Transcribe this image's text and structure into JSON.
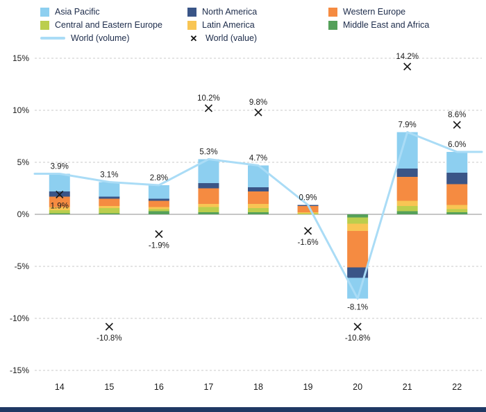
{
  "legend": {
    "items": [
      {
        "label": "Asia Pacific",
        "color": "#8DCFF0",
        "type": "square"
      },
      {
        "label": "North America",
        "color": "#3A5587",
        "type": "square"
      },
      {
        "label": "Western Europe",
        "color": "#F58B41",
        "type": "square"
      },
      {
        "label": "Central and Eastern Europe",
        "color": "#BBCE4D",
        "type": "square"
      },
      {
        "label": "Latin America",
        "color": "#F8C554",
        "type": "square"
      },
      {
        "label": "Middle East and Africa",
        "color": "#55A05A",
        "type": "square"
      },
      {
        "label": "World (volume)",
        "color": "#AADCF6",
        "type": "line"
      },
      {
        "label": "World (value)",
        "color": "#1a1a1a",
        "type": "x",
        "symbol": "✕"
      }
    ]
  },
  "chart_data": {
    "type": "bar",
    "subtype": "stacked-bars-with-line-and-markers",
    "categories": [
      "14",
      "15",
      "16",
      "17",
      "18",
      "19",
      "20",
      "21",
      "22"
    ],
    "series": [
      {
        "name": "Middle East and Africa",
        "color": "#55A05A",
        "values": [
          0.1,
          0.1,
          0.3,
          0.2,
          0.2,
          0.0,
          -0.3,
          0.3,
          0.2
        ]
      },
      {
        "name": "Central and Eastern Europe",
        "color": "#BBCE4D",
        "values": [
          0.3,
          0.5,
          0.2,
          0.5,
          0.4,
          0.1,
          -0.6,
          0.5,
          0.3
        ]
      },
      {
        "name": "Latin America",
        "color": "#F8C554",
        "values": [
          0.3,
          0.2,
          0.2,
          0.3,
          0.4,
          0.1,
          -0.7,
          0.5,
          0.4
        ]
      },
      {
        "name": "Western Europe",
        "color": "#F58B41",
        "values": [
          1.0,
          0.7,
          0.6,
          1.5,
          1.2,
          0.6,
          -3.5,
          2.3,
          2.0
        ]
      },
      {
        "name": "North America",
        "color": "#3A5587",
        "values": [
          0.5,
          0.2,
          0.2,
          0.5,
          0.4,
          0.1,
          -1.0,
          0.8,
          1.1
        ]
      },
      {
        "name": "Asia Pacific",
        "color": "#8DCFF0",
        "values": [
          1.7,
          1.4,
          1.3,
          2.3,
          2.1,
          0.0,
          -2.0,
          3.5,
          2.0
        ]
      }
    ],
    "line_series": {
      "name": "World (volume)",
      "color": "#AADCF6",
      "values": [
        3.9,
        3.1,
        2.8,
        5.3,
        4.7,
        0.9,
        -8.1,
        7.9,
        6.0
      ]
    },
    "marker_series": {
      "name": "World (value)",
      "color": "#1a1a1a",
      "values": [
        1.9,
        -10.8,
        -1.9,
        10.2,
        9.8,
        -1.6,
        -10.8,
        14.2,
        8.6
      ]
    },
    "bar_labels": [
      "3.9%",
      "3.1%",
      "2.8%",
      "5.3%",
      "4.7%",
      "0.9%",
      "-8.1%",
      "7.9%",
      "6.0%"
    ],
    "marker_labels": [
      "1.9%",
      "-10.8%",
      "-1.9%",
      "10.2%",
      "9.8%",
      "-1.6%",
      "-10.8%",
      "14.2%",
      "8.6%"
    ],
    "title": "",
    "xlabel": "",
    "ylabel": "",
    "ylim": [
      -15,
      15
    ],
    "yticks": [
      15,
      10,
      5,
      0,
      -5,
      -10,
      -15
    ],
    "ytick_labels": [
      "15%",
      "10%",
      "5%",
      "0%",
      "-5%",
      "-10%",
      "-15%"
    ],
    "grid": "dashed-horizontal",
    "legend_position": "top"
  }
}
